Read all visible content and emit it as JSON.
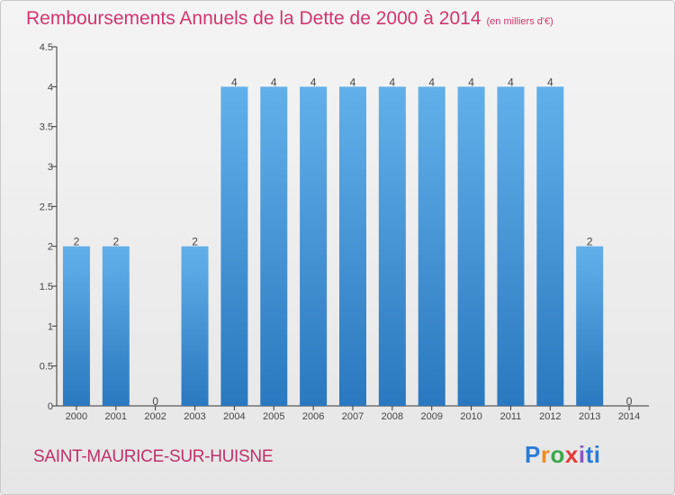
{
  "header": {
    "title": "Remboursements Annuels de la Dette de 2000 à 2014",
    "unit": "(en milliers d'€)"
  },
  "location": "SAINT-MAURICE-SUR-HUISNE",
  "brand": {
    "text": "Proxiti"
  },
  "colors": {
    "bar_top": "#62b0ea",
    "bar_bottom": "#2a78bf",
    "title": "#d2356e",
    "axis": "#333333",
    "label": "#444444"
  },
  "chart_data": {
    "type": "bar",
    "title": "Remboursements Annuels de la Dette de 2000 à 2014",
    "subtitle": "(en milliers d'€)",
    "xlabel": "",
    "ylabel": "",
    "categories": [
      "2000",
      "2001",
      "2002",
      "2003",
      "2004",
      "2005",
      "2006",
      "2007",
      "2008",
      "2009",
      "2010",
      "2011",
      "2012",
      "2013",
      "2014"
    ],
    "values": [
      2,
      2,
      0,
      2,
      4,
      4,
      4,
      4,
      4,
      4,
      4,
      4,
      4,
      2,
      0
    ],
    "data_labels": [
      "2",
      "2",
      "0",
      "2",
      "4",
      "4",
      "4",
      "4",
      "4",
      "4",
      "4",
      "4",
      "4",
      "2",
      "0"
    ],
    "ylim": [
      0,
      4.5
    ],
    "yticks": [
      0,
      0.5,
      1,
      1.5,
      2,
      2.5,
      3,
      3.5,
      4,
      4.5
    ],
    "ytick_labels": [
      "0",
      "0.5",
      "1",
      "1.5",
      "2",
      "2.5",
      "3",
      "3.5",
      "4",
      "4.5"
    ],
    "grid": false
  }
}
